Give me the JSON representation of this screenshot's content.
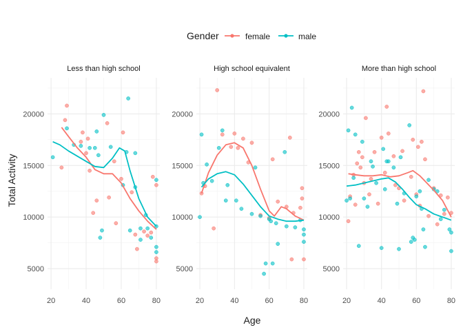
{
  "legend": {
    "title": "Gender",
    "female_label": "female",
    "male_label": "male"
  },
  "chart_data": {
    "type": "scatter",
    "xlabel": "Age",
    "ylabel": "Total Activity",
    "xlim": [
      18,
      82
    ],
    "ylim": [
      3000,
      23500
    ],
    "x_ticks": [
      20,
      40,
      60,
      80
    ],
    "y_ticks": [
      5000,
      10000,
      15000,
      20000
    ],
    "grid": true,
    "legend_position": "top",
    "colors": {
      "female": "#F8766D",
      "male": "#00BFC4"
    },
    "series_names": [
      "female",
      "male"
    ],
    "panels": [
      {
        "title": "Less than high school",
        "points": {
          "female": [
            [
              26,
              14800
            ],
            [
              28,
              19400
            ],
            [
              29,
              20800
            ],
            [
              37,
              17300
            ],
            [
              38,
              18200
            ],
            [
              40,
              16200
            ],
            [
              41,
              17600
            ],
            [
              42,
              14500
            ],
            [
              44,
              10400
            ],
            [
              46,
              11600
            ],
            [
              52,
              19100
            ],
            [
              53,
              11900
            ],
            [
              56,
              15400
            ],
            [
              57,
              9400
            ],
            [
              60,
              13700
            ],
            [
              61,
              18200
            ],
            [
              66,
              12400
            ],
            [
              68,
              8300
            ],
            [
              69,
              6900
            ],
            [
              73,
              8600
            ],
            [
              75,
              8200
            ],
            [
              77,
              8500
            ],
            [
              78,
              13900
            ],
            [
              80,
              13100
            ],
            [
              80,
              6000
            ],
            [
              80,
              5700
            ]
          ],
          "male": [
            [
              21,
              15800
            ],
            [
              29,
              18600
            ],
            [
              33,
              17000
            ],
            [
              37,
              16900
            ],
            [
              42,
              16700
            ],
            [
              45,
              16700
            ],
            [
              46,
              18300
            ],
            [
              47,
              16000
            ],
            [
              48,
              8000
            ],
            [
              49,
              8700
            ],
            [
              50,
              19900
            ],
            [
              54,
              16800
            ],
            [
              61,
              13100
            ],
            [
              63,
              16300
            ],
            [
              64,
              21500
            ],
            [
              65,
              8700
            ],
            [
              68,
              16200
            ],
            [
              68,
              12900
            ],
            [
              71,
              7800
            ],
            [
              71,
              8900
            ],
            [
              74,
              10200
            ],
            [
              75,
              8900
            ],
            [
              77,
              8000
            ],
            [
              80,
              9100
            ],
            [
              80,
              7100
            ],
            [
              80,
              6600
            ],
            [
              80,
              13600
            ]
          ]
        },
        "smooth": {
          "female": [
            [
              26,
              18700
            ],
            [
              30,
              17800
            ],
            [
              35,
              16700
            ],
            [
              40,
              15800
            ],
            [
              45,
              14600
            ],
            [
              50,
              14200
            ],
            [
              55,
              14200
            ],
            [
              60,
              13300
            ],
            [
              65,
              11800
            ],
            [
              70,
              10600
            ],
            [
              75,
              9600
            ],
            [
              80,
              8800
            ]
          ],
          "male": [
            [
              21,
              17300
            ],
            [
              25,
              17000
            ],
            [
              30,
              16400
            ],
            [
              35,
              15900
            ],
            [
              40,
              15400
            ],
            [
              45,
              14900
            ],
            [
              50,
              14800
            ],
            [
              55,
              15700
            ],
            [
              59,
              16700
            ],
            [
              62,
              16400
            ],
            [
              65,
              14500
            ],
            [
              70,
              11800
            ],
            [
              75,
              10000
            ],
            [
              80,
              9100
            ]
          ]
        }
      },
      {
        "title": "High school equivalent",
        "points": {
          "female": [
            [
              21,
              12300
            ],
            [
              23,
              13000
            ],
            [
              28,
              8900
            ],
            [
              30,
              22300
            ],
            [
              33,
              18000
            ],
            [
              38,
              16800
            ],
            [
              40,
              18100
            ],
            [
              42,
              16700
            ],
            [
              45,
              17600
            ],
            [
              48,
              15300
            ],
            [
              50,
              17200
            ],
            [
              55,
              10200
            ],
            [
              60,
              9900
            ],
            [
              62,
              15600
            ],
            [
              65,
              11500
            ],
            [
              70,
              11000
            ],
            [
              72,
              17700
            ],
            [
              73,
              5900
            ],
            [
              74,
              10400
            ],
            [
              78,
              10900
            ],
            [
              79,
              11800
            ],
            [
              79,
              12800
            ],
            [
              80,
              5900
            ]
          ],
          "male": [
            [
              20,
              10000
            ],
            [
              21,
              18000
            ],
            [
              22,
              13300
            ],
            [
              24,
              15100
            ],
            [
              27,
              13500
            ],
            [
              31,
              16700
            ],
            [
              33,
              18400
            ],
            [
              35,
              11600
            ],
            [
              36,
              13100
            ],
            [
              41,
              11600
            ],
            [
              44,
              10800
            ],
            [
              50,
              10300
            ],
            [
              52,
              14800
            ],
            [
              55,
              10100
            ],
            [
              57,
              4500
            ],
            [
              58,
              5500
            ],
            [
              60,
              9800
            ],
            [
              61,
              9600
            ],
            [
              62,
              5500
            ],
            [
              64,
              9400
            ],
            [
              65,
              7400
            ],
            [
              69,
              16300
            ],
            [
              70,
              9100
            ],
            [
              75,
              9000
            ],
            [
              78,
              9700
            ],
            [
              80,
              8800
            ],
            [
              80,
              8300
            ],
            [
              80,
              7600
            ]
          ]
        },
        "smooth": {
          "female": [
            [
              21,
              12300
            ],
            [
              25,
              14300
            ],
            [
              30,
              16000
            ],
            [
              35,
              17000
            ],
            [
              40,
              17200
            ],
            [
              45,
              16700
            ],
            [
              50,
              15000
            ],
            [
              55,
              12700
            ],
            [
              60,
              10600
            ],
            [
              63,
              10100
            ],
            [
              67,
              11000
            ],
            [
              70,
              10800
            ],
            [
              75,
              10100
            ],
            [
              80,
              9700
            ]
          ],
          "male": [
            [
              21,
              12900
            ],
            [
              25,
              13700
            ],
            [
              30,
              14200
            ],
            [
              35,
              14400
            ],
            [
              40,
              14100
            ],
            [
              45,
              13200
            ],
            [
              50,
              12100
            ],
            [
              55,
              11000
            ],
            [
              60,
              10100
            ],
            [
              65,
              9800
            ],
            [
              70,
              9600
            ],
            [
              75,
              9600
            ],
            [
              80,
              9700
            ]
          ]
        }
      },
      {
        "title": "More than high school",
        "points": {
          "female": [
            [
              21,
              9600
            ],
            [
              22,
              12000
            ],
            [
              24,
              14100
            ],
            [
              25,
              11200
            ],
            [
              26,
              15200
            ],
            [
              27,
              16300
            ],
            [
              28,
              14800
            ],
            [
              29,
              15800
            ],
            [
              30,
              13300
            ],
            [
              31,
              19600
            ],
            [
              33,
              12200
            ],
            [
              34,
              13700
            ],
            [
              36,
              16300
            ],
            [
              38,
              11300
            ],
            [
              40,
              17700
            ],
            [
              42,
              14300
            ],
            [
              43,
              20700
            ],
            [
              44,
              18100
            ],
            [
              47,
              15900
            ],
            [
              48,
              13100
            ],
            [
              50,
              12800
            ],
            [
              52,
              16400
            ],
            [
              53,
              11600
            ],
            [
              57,
              13900
            ],
            [
              58,
              17500
            ],
            [
              60,
              12200
            ],
            [
              61,
              16800
            ],
            [
              62,
              11100
            ],
            [
              63,
              17300
            ],
            [
              64,
              22200
            ],
            [
              65,
              15600
            ],
            [
              67,
              10100
            ],
            [
              70,
              12800
            ],
            [
              72,
              9300
            ],
            [
              74,
              12100
            ],
            [
              76,
              10300
            ],
            [
              78,
              11900
            ],
            [
              80,
              10400
            ]
          ],
          "male": [
            [
              20,
              11600
            ],
            [
              21,
              18400
            ],
            [
              22,
              11800
            ],
            [
              23,
              20600
            ],
            [
              24,
              13800
            ],
            [
              25,
              18000
            ],
            [
              27,
              7200
            ],
            [
              29,
              17300
            ],
            [
              30,
              11800
            ],
            [
              32,
              11000
            ],
            [
              34,
              15400
            ],
            [
              35,
              14900
            ],
            [
              37,
              13300
            ],
            [
              40,
              7000
            ],
            [
              41,
              16600
            ],
            [
              42,
              12700
            ],
            [
              43,
              15400
            ],
            [
              44,
              15400
            ],
            [
              47,
              14800
            ],
            [
              49,
              11300
            ],
            [
              50,
              6900
            ],
            [
              51,
              15800
            ],
            [
              53,
              12300
            ],
            [
              56,
              18900
            ],
            [
              57,
              7600
            ],
            [
              58,
              8000
            ],
            [
              59,
              7800
            ],
            [
              60,
              12000
            ],
            [
              62,
              12500
            ],
            [
              63,
              10800
            ],
            [
              64,
              8800
            ],
            [
              65,
              7100
            ],
            [
              67,
              13600
            ],
            [
              70,
              12700
            ],
            [
              72,
              12500
            ],
            [
              74,
              9800
            ],
            [
              76,
              10700
            ],
            [
              79,
              8800
            ],
            [
              80,
              8500
            ],
            [
              80,
              6700
            ]
          ]
        },
        "smooth": {
          "female": [
            [
              21,
              14200
            ],
            [
              25,
              14100
            ],
            [
              30,
              14000
            ],
            [
              35,
              14000
            ],
            [
              40,
              14100
            ],
            [
              45,
              13900
            ],
            [
              50,
              14000
            ],
            [
              55,
              14300
            ],
            [
              58,
              14500
            ],
            [
              62,
              14000
            ],
            [
              66,
              13300
            ],
            [
              70,
              12600
            ],
            [
              75,
              11600
            ],
            [
              80,
              10000
            ]
          ],
          "male": [
            [
              20,
              13000
            ],
            [
              25,
              13100
            ],
            [
              30,
              13300
            ],
            [
              35,
              13500
            ],
            [
              40,
              13700
            ],
            [
              44,
              13800
            ],
            [
              48,
              13400
            ],
            [
              52,
              12700
            ],
            [
              56,
              11900
            ],
            [
              60,
              11200
            ],
            [
              65,
              10800
            ],
            [
              70,
              10300
            ],
            [
              75,
              10000
            ],
            [
              80,
              9700
            ]
          ]
        }
      }
    ]
  }
}
